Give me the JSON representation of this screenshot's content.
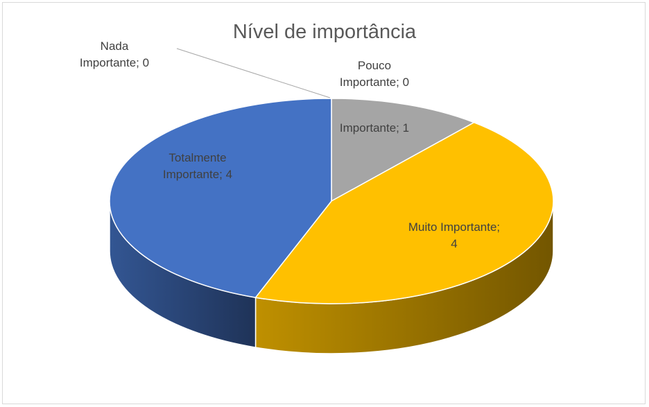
{
  "chart_data": {
    "type": "pie",
    "title": "Nível de importância",
    "categories": [
      "Nada Importante",
      "Pouco Importante",
      "Importante",
      "Muito Importante",
      "Totalmente Importante"
    ],
    "values": [
      0,
      0,
      1,
      4,
      4
    ],
    "value_labels": [
      "Nada Importante; 0",
      "Pouco Importante; 0",
      "Importante; 1",
      "Muito Importante; 4",
      "Totalmente Importante; 4"
    ],
    "colors": [
      "#4472c4",
      "#ed7d31",
      "#a5a5a5",
      "#ffc000",
      "#4472c4"
    ]
  }
}
